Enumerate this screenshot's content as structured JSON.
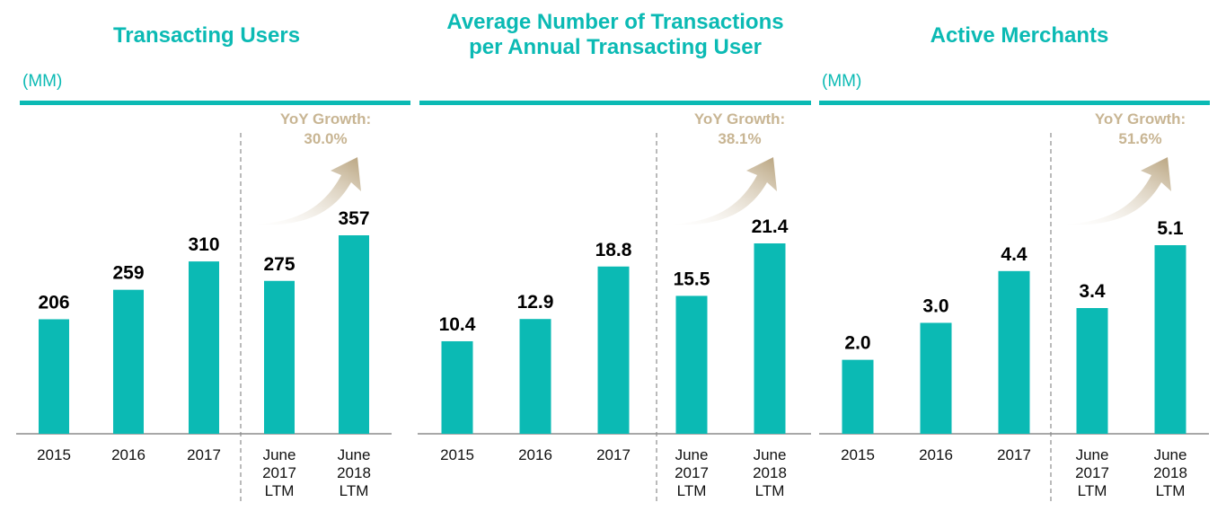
{
  "colors": {
    "accent": "#0bbab4",
    "bar": "#0bbab4",
    "growth": "#c8b593",
    "label": "#000000"
  },
  "chart_data": [
    {
      "type": "bar",
      "title": "Transacting Users",
      "unit_label": "(MM)",
      "categories": [
        "2015",
        "2016",
        "2017",
        "June 2017 LTM",
        "June 2018 LTM"
      ],
      "values": [
        206,
        259,
        310,
        275,
        357
      ],
      "value_labels": [
        "206",
        "259",
        "310",
        "275",
        "357"
      ],
      "ylim": [
        0,
        357
      ],
      "yoy_growth_label": "YoY Growth:",
      "yoy_growth_value": "30.0%",
      "xlabel": "",
      "ylabel": "",
      "grid": false
    },
    {
      "type": "bar",
      "title": "Average Number of Transactions per Annual Transacting User",
      "title_lines": [
        "Average Number of Transactions",
        "per Annual Transacting User"
      ],
      "unit_label": "",
      "categories": [
        "2015",
        "2016",
        "2017",
        "June 2017 LTM",
        "June 2018 LTM"
      ],
      "values": [
        10.4,
        12.9,
        18.8,
        15.5,
        21.4
      ],
      "value_labels": [
        "10.4",
        "12.9",
        "18.8",
        "15.5",
        "21.4"
      ],
      "ylim": [
        0,
        21.4
      ],
      "yoy_growth_label": "YoY Growth:",
      "yoy_growth_value": "38.1%",
      "xlabel": "",
      "ylabel": "",
      "grid": false
    },
    {
      "type": "bar",
      "title": "Active Merchants",
      "unit_label": "(MM)",
      "categories": [
        "2015",
        "2016",
        "2017",
        "June 2017 LTM",
        "June 2018 LTM"
      ],
      "values": [
        2.0,
        3.0,
        4.4,
        3.4,
        5.1
      ],
      "value_labels": [
        "2.0",
        "3.0",
        "4.4",
        "3.4",
        "5.1"
      ],
      "ylim": [
        0,
        5.1
      ],
      "yoy_growth_label": "YoY Growth:",
      "yoy_growth_value": "51.6%",
      "xlabel": "",
      "ylabel": "",
      "grid": false
    }
  ]
}
